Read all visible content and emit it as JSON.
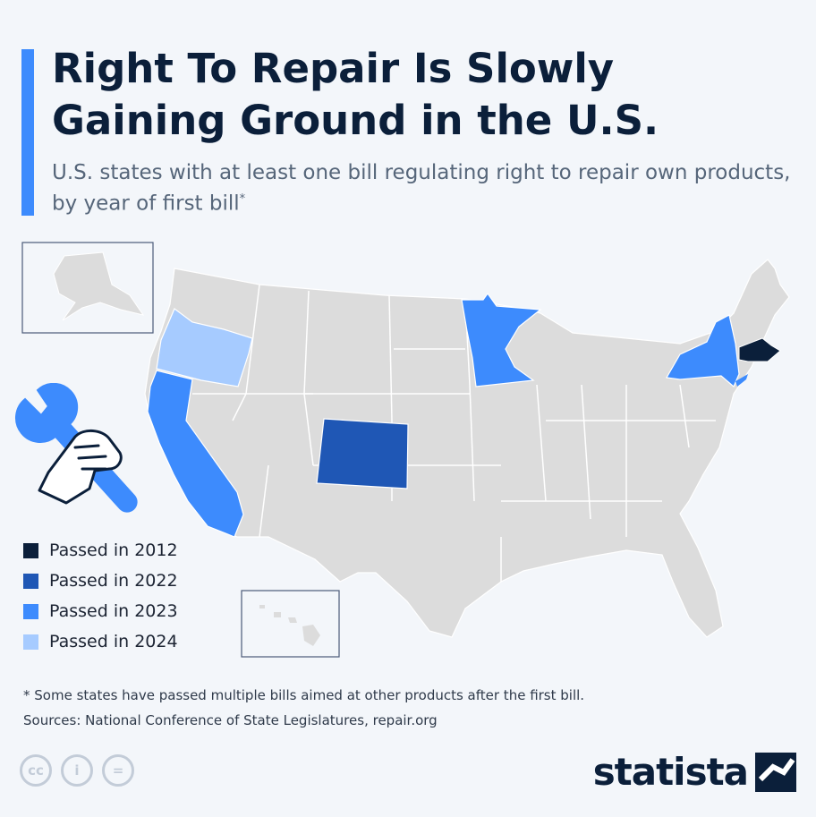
{
  "header": {
    "title": "Right To Repair Is Slowly Gaining Ground in the U.S.",
    "subtitle": "U.S. states with at least one bill regulating right to repair own products, by year of first bill",
    "subtitle_marker": "*"
  },
  "colors": {
    "accent": "#3d8bfd",
    "base_state": "#dcdcdc",
    "border": "#ffffff",
    "passed_2012": "#0b1f3a",
    "passed_2022": "#1f57b5",
    "passed_2023": "#3d8bfd",
    "passed_2024": "#a6cbff"
  },
  "legend": {
    "items": [
      {
        "label": "Passed in 2012",
        "color": "#0b1f3a"
      },
      {
        "label": "Passed in 2022",
        "color": "#1f57b5"
      },
      {
        "label": "Passed in 2023",
        "color": "#3d8bfd"
      },
      {
        "label": "Passed in 2024",
        "color": "#a6cbff"
      }
    ]
  },
  "map": {
    "highlighted_states": [
      {
        "state": "Massachusetts",
        "year": 2012
      },
      {
        "state": "Colorado",
        "year": 2022
      },
      {
        "state": "California",
        "year": 2023
      },
      {
        "state": "Minnesota",
        "year": 2023
      },
      {
        "state": "New York",
        "year": 2023
      },
      {
        "state": "Oregon",
        "year": 2024
      }
    ],
    "insets": [
      "Alaska",
      "Hawaii"
    ]
  },
  "footer": {
    "footnote": "* Some states have passed multiple bills aimed at other products after the first bill.",
    "source": "Sources: National Conference of State Legislatures, repair.org",
    "license_icons": [
      "cc",
      "i",
      "="
    ],
    "brand": "statista"
  }
}
